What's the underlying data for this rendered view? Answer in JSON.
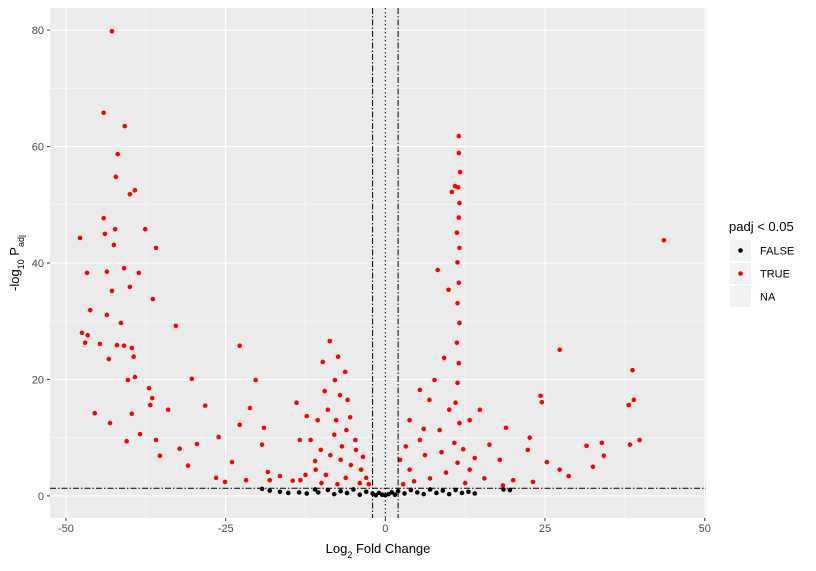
{
  "chart_data": {
    "type": "scatter",
    "x_label": [
      "Log",
      "2",
      " Fold Change"
    ],
    "y_label": [
      "-log",
      "10",
      " P",
      "adj"
    ],
    "xlim": [
      -52.5,
      50.2
    ],
    "ylim": [
      -3.8,
      83.8
    ],
    "xticks": [
      -50,
      -25,
      0,
      25,
      50
    ],
    "yticks": [
      0,
      20,
      40,
      60,
      80
    ],
    "grid": true,
    "legend_title": "padj < 0.05",
    "legend_position": "right",
    "hlines": [
      {
        "value": 1.3,
        "linetype": "dashdot"
      }
    ],
    "vlines": [
      {
        "value": -2,
        "linetype": "dashdot"
      },
      {
        "value": 0,
        "linetype": "dotted"
      },
      {
        "value": 2,
        "linetype": "dashdot"
      }
    ],
    "series": [
      {
        "name": "FALSE",
        "color": "black",
        "x": [
          -19.3,
          -18.1,
          -16.5,
          -15.2,
          -12.3,
          -10.5,
          -9.0,
          -8.0,
          -7.0,
          -6.0,
          -5.0,
          -4.0,
          -3.0,
          -2.0,
          -1.5,
          -1.0,
          -0.5,
          0.0,
          0.5,
          1.0,
          1.5,
          2.0,
          3.0,
          4.0,
          5.0,
          6.0,
          7.0,
          8.0,
          9.0,
          10.0,
          11.0,
          12.0,
          13.0,
          14.0,
          18.5,
          19.5,
          -13.5,
          -11.0
        ],
        "values": [
          1.2,
          0.9,
          0.7,
          0.5,
          0.4,
          0.6,
          1.0,
          0.3,
          0.8,
          0.5,
          1.1,
          0.2,
          0.7,
          0.4,
          0.1,
          0.5,
          0.2,
          0.1,
          0.3,
          0.6,
          0.2,
          0.8,
          0.4,
          1.0,
          0.6,
          0.3,
          1.1,
          0.5,
          0.9,
          0.3,
          1.0,
          0.5,
          0.7,
          0.4,
          1.1,
          1.0,
          0.6,
          1.1
        ]
      },
      {
        "name": "TRUE",
        "color": "red",
        "x": [
          -42.8,
          -44.1,
          -40.8,
          -41.9,
          -42.2,
          -39.2,
          -40.0,
          -44.1,
          -42.3,
          -37.6,
          -47.8,
          -43.9,
          -42.5,
          -35.9,
          -40.9,
          -43.6,
          -46.7,
          -38.6,
          -40.0,
          -42.8,
          -36.4,
          -46.2,
          -43.6,
          -41.4,
          -32.8,
          -47.5,
          -46.6,
          -47.0,
          -44.7,
          -42.0,
          -40.9,
          -39.7,
          -22.8,
          -43.3,
          -39.4,
          -40.3,
          -30.3,
          -20.3,
          -39.2,
          -37.0,
          -36.8,
          -36.5,
          -34.0,
          -45.5,
          -39.7,
          -43.1,
          -38.4,
          -35.9,
          -40.5,
          -28.2,
          -21.2,
          -32.2,
          -29.5,
          -26.1,
          -22.8,
          -19.0,
          -19.3,
          -24.0,
          -26.5,
          -30.9,
          -25.1,
          -21.8,
          -18.4,
          -16.5,
          -13.9,
          -12.3,
          -13.4,
          -14.5,
          -35.3,
          -18.1,
          -8.7,
          -7.4,
          -9.8,
          -6.3,
          -7.9,
          -7.1,
          -5.9,
          -9.0,
          -10.6,
          -7.7,
          -6.1,
          -4.7,
          -11.7,
          -10.1,
          -8.6,
          -7.0,
          -5.4,
          -3.8,
          -3.0,
          -10.9,
          -9.3,
          -6.2,
          -4.6,
          -3.5,
          -12.5,
          -13.3,
          -8.0,
          -5.5,
          -9.5,
          -11.0,
          -6.8,
          -4.0,
          -7.5,
          -10.0,
          -2.6,
          11.5,
          11.5,
          11.7,
          11.4,
          11.6,
          11.5,
          11.2,
          11.6,
          11.3,
          11.5,
          11.3,
          11.6,
          11.2,
          11.5,
          11.3,
          11.0,
          11.6,
          10.8,
          11.3,
          10.9,
          10.4,
          8.2,
          9.9,
          9.2,
          7.7,
          5.4,
          6.9,
          3.8,
          5.4,
          2.3,
          3.8,
          6.2,
          8.5,
          10.0,
          13.2,
          14.8,
          16.3,
          17.9,
          13.2,
          4.5,
          7.0,
          9.5,
          12.5,
          15.5,
          2.8,
          6.0,
          8.8,
          12.2,
          14.0,
          3.2,
          43.6,
          27.3,
          38.7,
          38.9,
          38.1,
          24.3,
          24.5,
          18.9,
          22.6,
          33.9,
          31.5,
          39.8,
          38.3,
          34.2,
          22.3,
          25.3,
          27.3,
          32.5,
          28.7,
          20.0,
          23.1,
          18.4
        ],
        "values": [
          79.8,
          65.8,
          63.5,
          58.7,
          54.8,
          52.5,
          51.8,
          47.7,
          45.8,
          45.8,
          44.3,
          45.0,
          43.1,
          42.6,
          39.1,
          38.5,
          38.3,
          38.3,
          35.9,
          35.2,
          33.8,
          31.9,
          31.1,
          29.7,
          29.2,
          28.0,
          27.6,
          26.3,
          26.1,
          25.9,
          25.8,
          25.4,
          25.8,
          23.5,
          23.9,
          19.9,
          20.1,
          19.9,
          20.4,
          18.5,
          15.6,
          16.8,
          14.8,
          14.2,
          14.1,
          12.5,
          10.6,
          9.6,
          9.4,
          15.5,
          15.1,
          8.1,
          8.9,
          10.1,
          12.2,
          11.7,
          8.8,
          5.8,
          3.1,
          5.2,
          2.4,
          2.7,
          4.1,
          3.4,
          16.0,
          13.7,
          9.6,
          2.6,
          6.9,
          2.7,
          26.6,
          23.9,
          23.0,
          21.3,
          19.9,
          17.3,
          16.5,
          14.8,
          13.0,
          13.0,
          11.3,
          9.6,
          9.6,
          7.9,
          7.0,
          6.2,
          5.3,
          4.5,
          3.1,
          4.5,
          3.6,
          3.1,
          7.9,
          6.7,
          3.6,
          2.7,
          10.5,
          13.5,
          18.0,
          6.0,
          8.5,
          2.2,
          2.0,
          2.2,
          2.0,
          61.8,
          58.9,
          55.6,
          53.0,
          50.3,
          47.8,
          45.2,
          42.6,
          40.1,
          36.6,
          33.1,
          29.7,
          26.3,
          22.8,
          19.4,
          16.0,
          12.5,
          9.1,
          5.7,
          53.2,
          52.2,
          38.8,
          35.4,
          23.7,
          19.9,
          18.2,
          16.5,
          13.0,
          9.6,
          6.2,
          4.5,
          7.0,
          11.3,
          14.8,
          13.0,
          14.8,
          8.8,
          6.2,
          4.5,
          2.5,
          3.0,
          4.0,
          2.2,
          3.0,
          2.0,
          11.5,
          7.5,
          8.0,
          6.5,
          8.5,
          43.9,
          25.1,
          21.6,
          16.5,
          15.6,
          17.2,
          16.1,
          11.7,
          10.0,
          9.1,
          8.6,
          9.6,
          8.8,
          6.9,
          7.9,
          5.8,
          4.5,
          5.0,
          3.4,
          2.7,
          2.4,
          1.8
        ]
      },
      {
        "name": "NA",
        "x": [],
        "values": []
      }
    ]
  }
}
